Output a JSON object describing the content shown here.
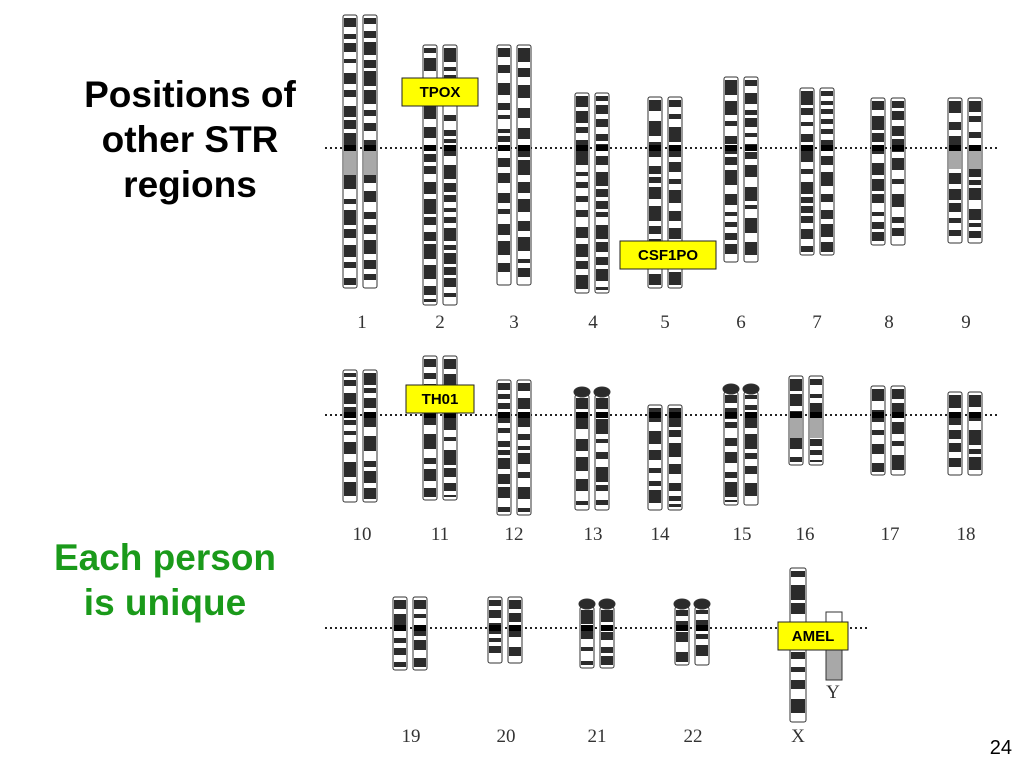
{
  "heading": {
    "line1": "Positions of",
    "line2": "other STR",
    "line3": "regions"
  },
  "subheading": {
    "line1": "Each person",
    "line2": "is unique"
  },
  "page_number": "24",
  "colors": {
    "heading": "#000000",
    "subheading": "#1a9a1a",
    "tag_fill": "#ffff00",
    "band_dark": "#2b2b2b",
    "centromere_gray": "#a8a8a8"
  },
  "markers": [
    {
      "label": "TPOX",
      "chromosome": "2"
    },
    {
      "label": "CSF1PO",
      "chromosome": "5"
    },
    {
      "label": "TH01",
      "chromosome": "11"
    },
    {
      "label": "AMEL",
      "chromosome": "X/Y"
    }
  ],
  "chromosome_labels": {
    "row1": [
      "1",
      "2",
      "3",
      "4",
      "5",
      "6",
      "7",
      "8",
      "9"
    ],
    "row2": [
      "10",
      "11",
      "12",
      "13",
      "14",
      "15",
      "16",
      "17",
      "18"
    ],
    "row3": [
      "19",
      "20",
      "21",
      "22",
      "X",
      "Y"
    ]
  }
}
